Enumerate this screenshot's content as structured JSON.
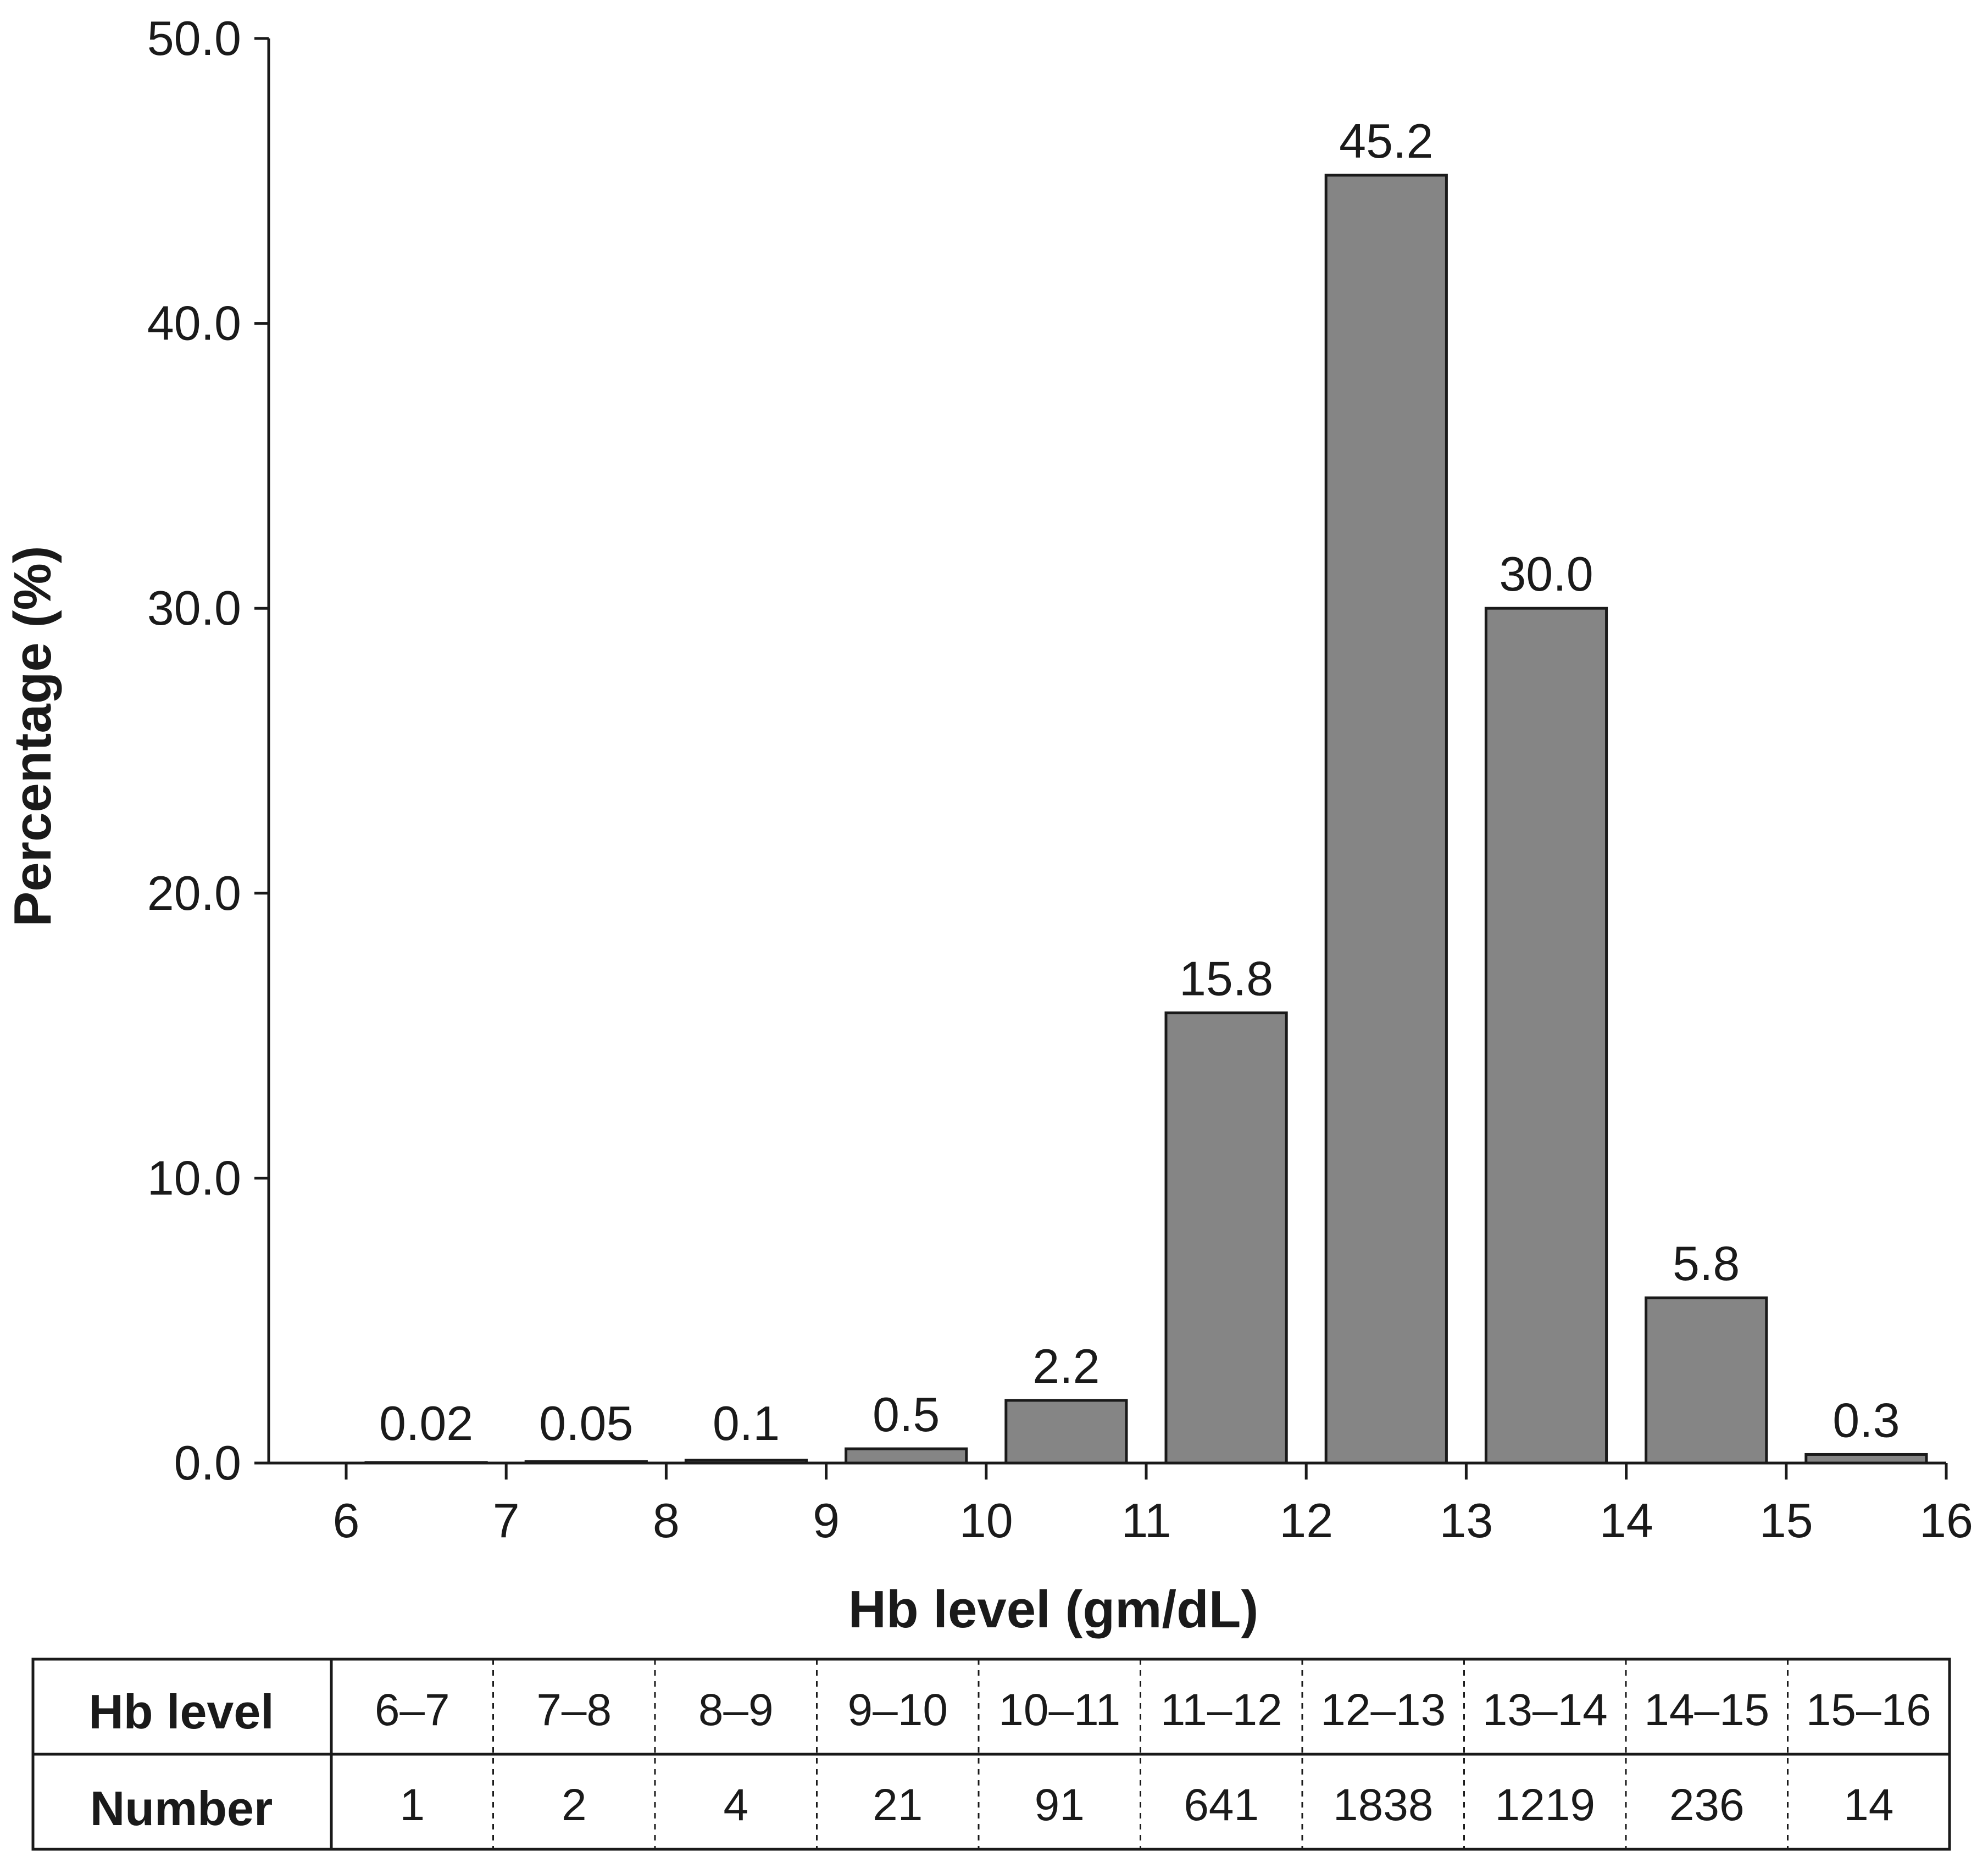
{
  "chart_data": {
    "type": "bar",
    "title": "",
    "xlabel": "Hb level (gm/dL)",
    "ylabel": "Percentage (%)",
    "ylim": [
      0,
      50
    ],
    "yticks": [
      "0.0",
      "10.0",
      "20.0",
      "30.0",
      "40.0",
      "50.0"
    ],
    "xlim": [
      5.5,
      16
    ],
    "xticks": [
      "6",
      "7",
      "8",
      "9",
      "10",
      "11",
      "12",
      "13",
      "14",
      "15",
      "16"
    ],
    "bins": [
      [
        6,
        7
      ],
      [
        7,
        8
      ],
      [
        8,
        9
      ],
      [
        9,
        10
      ],
      [
        10,
        11
      ],
      [
        11,
        12
      ],
      [
        12,
        13
      ],
      [
        13,
        14
      ],
      [
        14,
        15
      ],
      [
        15,
        16
      ]
    ],
    "values": [
      0.02,
      0.05,
      0.1,
      0.5,
      2.2,
      15.8,
      45.2,
      30.0,
      5.8,
      0.3
    ],
    "value_labels": [
      "0.02",
      "0.05",
      "0.1",
      "0.5",
      "2.2",
      "15.8",
      "45.2",
      "30.0",
      "5.8",
      "0.3"
    ],
    "bar_color": "#858585",
    "grid": false
  },
  "table": {
    "header_label": "Hb level",
    "row_label": "Number",
    "ranges": [
      "6–7",
      "7–8",
      "8–9",
      "9–10",
      "10–11",
      "11–12",
      "12–13",
      "13–14",
      "14–15",
      "15–16"
    ],
    "numbers": [
      "1",
      "2",
      "4",
      "21",
      "91",
      "641",
      "1838",
      "1219",
      "236",
      "14"
    ]
  }
}
